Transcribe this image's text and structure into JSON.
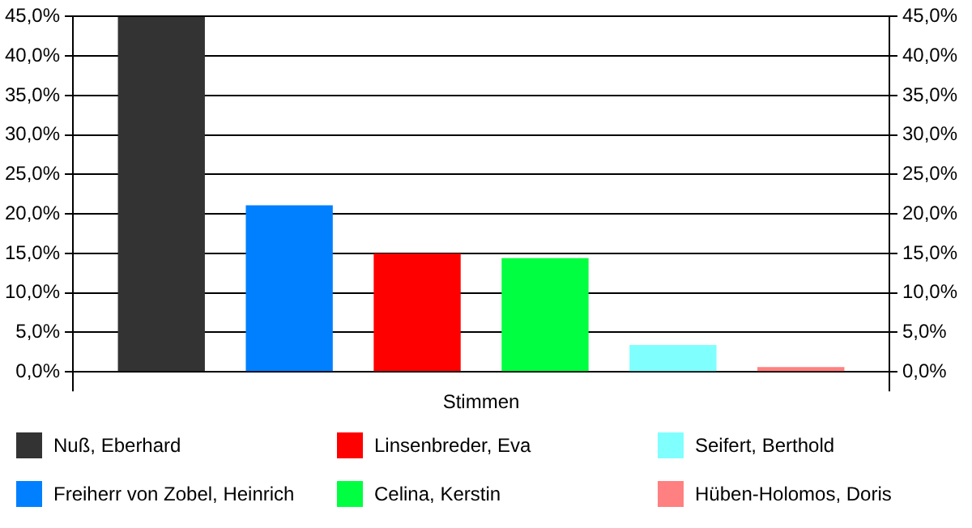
{
  "chart_data": {
    "type": "bar",
    "categories": [
      "Stimmen"
    ],
    "series": [
      {
        "name": "Nuß, Eberhard",
        "color": "#333333",
        "values": [
          45.0
        ]
      },
      {
        "name": "Freiherr von Zobel, Heinrich",
        "color": "#0080ff",
        "values": [
          21.1
        ]
      },
      {
        "name": "Linsenbreder, Eva",
        "color": "#ff0000",
        "values": [
          15.0
        ]
      },
      {
        "name": "Celina, Kerstin",
        "color": "#00ff40",
        "values": [
          14.4
        ]
      },
      {
        "name": "Seifert, Berthold",
        "color": "#80ffff",
        "values": [
          3.4
        ]
      },
      {
        "name": "Hüben-Holomos, Doris",
        "color": "#ff8080",
        "values": [
          0.6
        ]
      }
    ],
    "ylim": [
      0,
      45
    ],
    "yticks": [
      {
        "value": 0,
        "label": "0,0%"
      },
      {
        "value": 5,
        "label": "5,0%"
      },
      {
        "value": 10,
        "label": "10,0%"
      },
      {
        "value": 15,
        "label": "15,0%"
      },
      {
        "value": 20,
        "label": "20,0%"
      },
      {
        "value": 25,
        "label": "25,0%"
      },
      {
        "value": 30,
        "label": "30,0%"
      },
      {
        "value": 35,
        "label": "35,0%"
      },
      {
        "value": 40,
        "label": "40,0%"
      },
      {
        "value": 45,
        "label": "45,0%"
      }
    ],
    "grid": "y",
    "legend": "bottom"
  }
}
